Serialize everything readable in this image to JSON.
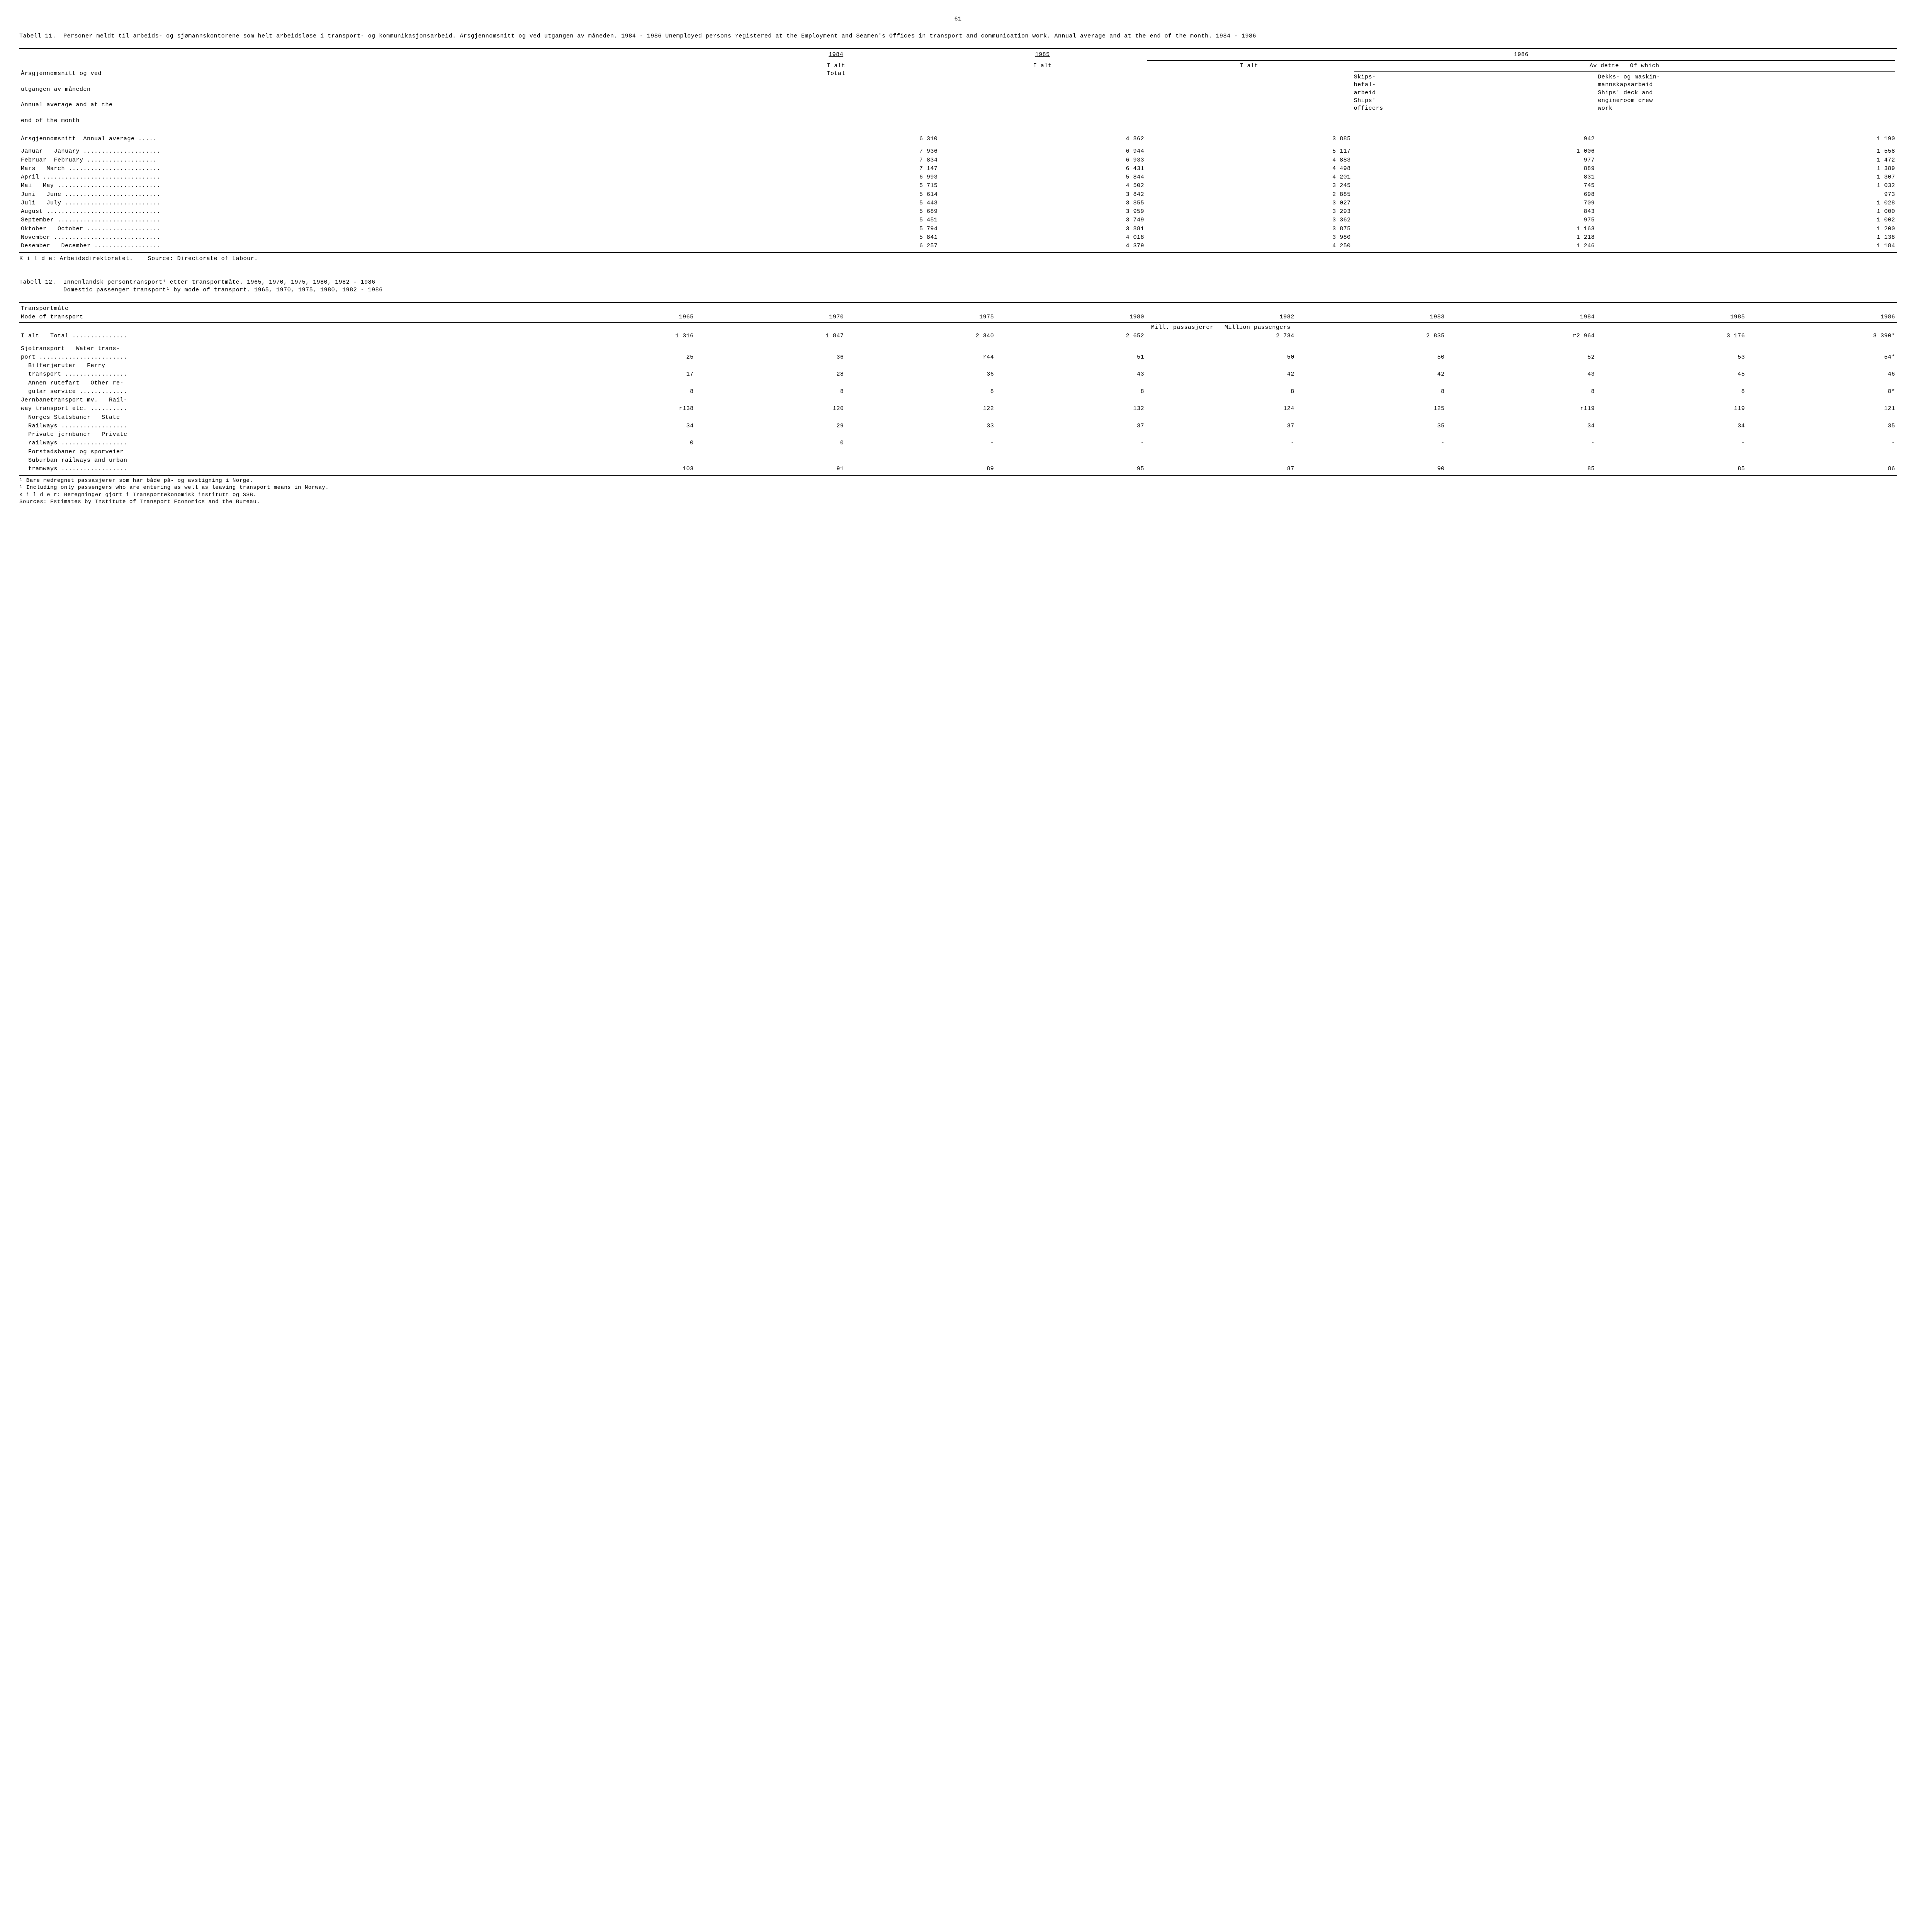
{
  "page_number": "61",
  "table11": {
    "caption_label": "Tabell 11.  ",
    "caption_text": "Personer meldt til arbeids- og sjømannskontorene som helt arbeidsløse i transport- og kommunikasjonsarbeid.  Årsgjennomsnitt og ved utgangen av måneden.  1984 - 1986    Unemployed persons registered at the Employment and Seamen's Offices in transport and communication work.  Annual average and at the end of the month.  1984 - 1986",
    "header": {
      "y1984": "1984",
      "y1985": "1985",
      "y1986": "1986",
      "rowhead_no": "Årsgjennomsnitt og ved",
      "rowhead_no2": "utgangen av måneden",
      "rowhead_en": "Annual average and at the",
      "rowhead_en2": "end of the month",
      "col84": "I alt\nTotal",
      "col85": "I alt",
      "col86_alt": "I alt",
      "avdette": "Av dette   Of which",
      "col86_ships": "Skips-\nbefal-\narbeid\nShips'\nofficers",
      "col86_deck": "Dekks- og maskin-\nmannskapsarbeid\nShips' deck and\nengineroom crew\nwork"
    },
    "rows": [
      {
        "label": "Årsgjennomsnitt  Annual average .....",
        "c1": "6 310",
        "c2": "4 862",
        "c3": "3 885",
        "c4": "942",
        "c5": "1 190"
      },
      {
        "label": "",
        "c1": "",
        "c2": "",
        "c3": "",
        "c4": "",
        "c5": ""
      },
      {
        "label": "Januar   January .....................",
        "c1": "7 936",
        "c2": "6 944",
        "c3": "5 117",
        "c4": "1 006",
        "c5": "1 558"
      },
      {
        "label": "Februar  February ...................",
        "c1": "7 834",
        "c2": "6 933",
        "c3": "4 883",
        "c4": "977",
        "c5": "1 472"
      },
      {
        "label": "Mars   March .........................",
        "c1": "7 147",
        "c2": "6 431",
        "c3": "4 498",
        "c4": "889",
        "c5": "1 389"
      },
      {
        "label": "April ................................",
        "c1": "6 993",
        "c2": "5 844",
        "c3": "4 201",
        "c4": "831",
        "c5": "1 307"
      },
      {
        "label": "Mai   May ............................",
        "c1": "5 715",
        "c2": "4 502",
        "c3": "3 245",
        "c4": "745",
        "c5": "1 032"
      },
      {
        "label": "Juni   June ..........................",
        "c1": "5 614",
        "c2": "3 842",
        "c3": "2 885",
        "c4": "698",
        "c5": "973"
      },
      {
        "label": "Juli   July ..........................",
        "c1": "5 443",
        "c2": "3 855",
        "c3": "3 027",
        "c4": "709",
        "c5": "1 028"
      },
      {
        "label": "August ...............................",
        "c1": "5 689",
        "c2": "3 959",
        "c3": "3 293",
        "c4": "843",
        "c5": "1 000"
      },
      {
        "label": "September ............................",
        "c1": "5 451",
        "c2": "3 749",
        "c3": "3 362",
        "c4": "975",
        "c5": "1 002"
      },
      {
        "label": "Oktober   October ....................",
        "c1": "5 794",
        "c2": "3 881",
        "c3": "3 875",
        "c4": "1 163",
        "c5": "1 200"
      },
      {
        "label": "November .............................",
        "c1": "5 841",
        "c2": "4 018",
        "c3": "3 980",
        "c4": "1 218",
        "c5": "1 138"
      },
      {
        "label": "Desember   December ..................",
        "c1": "6 257",
        "c2": "4 379",
        "c3": "4 250",
        "c4": "1 246",
        "c5": "1 184"
      }
    ],
    "source_no": "K i l d e:  Arbeidsdirektoratet.",
    "source_en": "Source: Directorate of Labour."
  },
  "table12": {
    "caption_label": "Tabell 12.  ",
    "caption_no": "Innenlandsk persontransport¹ etter transportmåte.  1965, 1970, 1975, 1980, 1982 - 1986",
    "caption_en": "Domestic passenger transport¹ by mode of transport.  1965, 1970, 1975, 1980, 1982 - 1986",
    "header": {
      "rowhead1": "Transportmåte",
      "rowhead2": "Mode of transport",
      "years": [
        "1965",
        "1970",
        "1975",
        "1980",
        "1982",
        "1983",
        "1984",
        "1985",
        "1986"
      ],
      "unit": "Mill. passasjerer   Million passengers"
    },
    "rows": [
      {
        "label": "I alt   Total ...............",
        "vals": [
          "1 316",
          "1 847",
          "2 340",
          "2 652",
          "2 734",
          "2 835",
          "r2 964",
          "3 176",
          "3 390*"
        ]
      },
      {
        "label": "",
        "vals": [
          "",
          "",
          "",
          "",
          "",
          "",
          "",
          "",
          ""
        ]
      },
      {
        "label": "Sjøtransport   Water trans-",
        "vals": [
          "",
          "",
          "",
          "",
          "",
          "",
          "",
          "",
          ""
        ]
      },
      {
        "label": "port ........................",
        "vals": [
          "25",
          "36",
          "r44",
          "51",
          "50",
          "50",
          "52",
          "53",
          "54*"
        ]
      },
      {
        "label": "  Bilferjeruter   Ferry",
        "vals": [
          "",
          "",
          "",
          "",
          "",
          "",
          "",
          "",
          ""
        ]
      },
      {
        "label": "  transport .................",
        "vals": [
          "17",
          "28",
          "36",
          "43",
          "42",
          "42",
          "43",
          "45",
          "46"
        ]
      },
      {
        "label": "  Annen rutefart   Other re-",
        "vals": [
          "",
          "",
          "",
          "",
          "",
          "",
          "",
          "",
          ""
        ]
      },
      {
        "label": "  gular service .............",
        "vals": [
          "8",
          "8",
          "8",
          "8",
          "8",
          "8",
          "8",
          "8",
          "8*"
        ]
      },
      {
        "label": "Jernbanetransport mv.   Rail-",
        "vals": [
          "",
          "",
          "",
          "",
          "",
          "",
          "",
          "",
          ""
        ]
      },
      {
        "label": "way transport etc. ..........",
        "vals": [
          "r138",
          "120",
          "122",
          "132",
          "124",
          "125",
          "r119",
          "119",
          "121"
        ]
      },
      {
        "label": "  Norges Statsbaner   State",
        "vals": [
          "",
          "",
          "",
          "",
          "",
          "",
          "",
          "",
          ""
        ]
      },
      {
        "label": "  Railways ..................",
        "vals": [
          "34",
          "29",
          "33",
          "37",
          "37",
          "35",
          "34",
          "34",
          "35"
        ]
      },
      {
        "label": "  Private jernbaner   Private",
        "vals": [
          "",
          "",
          "",
          "",
          "",
          "",
          "",
          "",
          ""
        ]
      },
      {
        "label": "  railways ..................",
        "vals": [
          "0",
          "0",
          "-",
          "-",
          "-",
          "-",
          "-",
          "-",
          "-"
        ]
      },
      {
        "label": "  Forstadsbaner og sporveier",
        "vals": [
          "",
          "",
          "",
          "",
          "",
          "",
          "",
          "",
          ""
        ]
      },
      {
        "label": "  Suburban railways and urban",
        "vals": [
          "",
          "",
          "",
          "",
          "",
          "",
          "",
          "",
          ""
        ]
      },
      {
        "label": "  tramways ..................",
        "vals": [
          "103",
          "91",
          "89",
          "95",
          "87",
          "90",
          "85",
          "85",
          "86"
        ]
      }
    ],
    "footnote1_no": "¹ Bare medregnet passasjerer som har både på- og avstigning i Norge.",
    "footnote1_en": "¹ Including only passengers who are entering as well as leaving transport means in Norway.",
    "source_no": "K i l d e r:  Beregninger gjort i Transportøkonomisk institutt og SSB.",
    "source_en": "Sources:  Estimates by Institute of Transport Economics and the Bureau."
  }
}
